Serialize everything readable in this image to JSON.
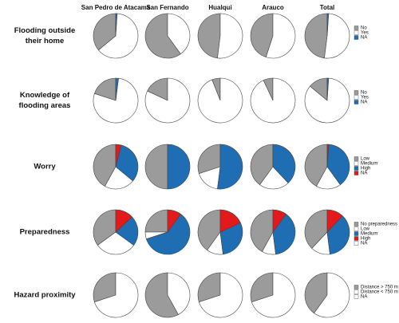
{
  "chart_data": {
    "type": "pie",
    "columns": [
      "San Pedro de Atacama",
      "San Fernando",
      "Hualqui",
      "Arauco",
      "Total"
    ],
    "rows": [
      {
        "label_lines": [
          "Flooding outside",
          "their home"
        ],
        "series": [
          {
            "name": "No",
            "color": "#9b9b9b"
          },
          {
            "name": "Yes",
            "color": "#ffffff"
          },
          {
            "name": "NA",
            "color": "#1f6eb4"
          }
        ],
        "values": [
          [
            36,
            63,
            1
          ],
          [
            60,
            40,
            0
          ],
          [
            48,
            52,
            0
          ],
          [
            45,
            55,
            0
          ],
          [
            48,
            51,
            1
          ]
        ]
      },
      {
        "label_lines": [
          "Knowledge of",
          "flooding areas"
        ],
        "series": [
          {
            "name": "No",
            "color": "#9b9b9b"
          },
          {
            "name": "Yes",
            "color": "#ffffff"
          },
          {
            "name": "NA",
            "color": "#1f6eb4"
          }
        ],
        "values": [
          [
            20,
            78,
            2
          ],
          [
            18,
            82,
            0
          ],
          [
            6,
            94,
            0
          ],
          [
            7,
            93,
            0
          ],
          [
            14,
            85,
            1
          ]
        ]
      },
      {
        "label_lines": [
          "Worry"
        ],
        "series": [
          {
            "name": "Low",
            "color": "#9b9b9b"
          },
          {
            "name": "Medium",
            "color": "#ffffff"
          },
          {
            "name": "High",
            "color": "#1f6eb4"
          },
          {
            "name": "NA",
            "color": "#e31a1c"
          }
        ],
        "values": [
          [
            42,
            22,
            32,
            4
          ],
          [
            50,
            0,
            50,
            0
          ],
          [
            30,
            18,
            52,
            0
          ],
          [
            40,
            22,
            38,
            0
          ],
          [
            42,
            18,
            39,
            1
          ]
        ]
      },
      {
        "label_lines": [
          "Preparedness"
        ],
        "series": [
          {
            "name": "No preparedness",
            "color": "#9b9b9b"
          },
          {
            "name": "Low",
            "color": "#ffffff"
          },
          {
            "name": "Medium",
            "color": "#1f6eb4"
          },
          {
            "name": "High",
            "color": "#e31a1c"
          },
          {
            "name": "NA",
            "color": "#ffffff"
          }
        ],
        "values": [
          [
            35,
            30,
            22,
            13,
            0
          ],
          [
            25,
            5,
            60,
            10,
            0
          ],
          [
            40,
            12,
            30,
            18,
            0
          ],
          [
            42,
            10,
            38,
            10,
            0
          ],
          [
            38,
            14,
            36,
            12,
            0
          ]
        ]
      },
      {
        "label_lines": [
          "Hazard proximity"
        ],
        "series": [
          {
            "name": "Distance > 750 m",
            "color": "#9b9b9b"
          },
          {
            "name": "Distance < 750 m",
            "color": "#ffffff"
          },
          {
            "name": "NA",
            "color": "#ffffff"
          }
        ],
        "values": [
          [
            30,
            70,
            0
          ],
          [
            58,
            42,
            0
          ],
          [
            30,
            70,
            0
          ],
          [
            30,
            70,
            0
          ],
          [
            40,
            60,
            0
          ]
        ]
      }
    ]
  }
}
